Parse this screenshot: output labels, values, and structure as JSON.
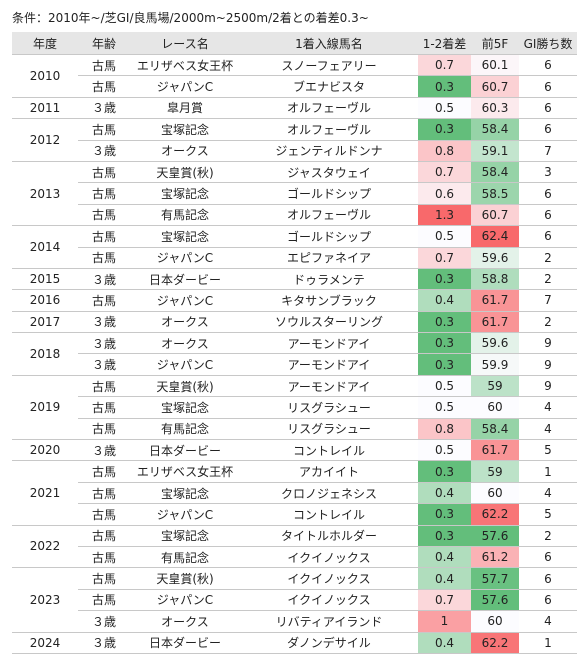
{
  "caption": "条件：2010年~/芝GI/良馬場/2000m~2500m/2着との着差0.3~",
  "table": {
    "columns": [
      "年度",
      "年齢",
      "レース名",
      "1着入線馬名",
      "1-2着差",
      "前5F",
      "GI勝ち数"
    ],
    "groups": [
      {
        "year": "2010",
        "rows": [
          [
            "古馬",
            "エリザベス女王杯",
            "スノーフェアリー",
            0.7,
            60.1,
            6
          ],
          [
            "古馬",
            "ジャパンC",
            "ブエナビスタ",
            0.3,
            60.7,
            6
          ]
        ]
      },
      {
        "year": "2011",
        "rows": [
          [
            "３歳",
            "皐月賞",
            "オルフェーヴル",
            0.5,
            60.3,
            6
          ]
        ]
      },
      {
        "year": "2012",
        "rows": [
          [
            "古馬",
            "宝塚記念",
            "オルフェーヴル",
            0.3,
            58.4,
            6
          ],
          [
            "３歳",
            "オークス",
            "ジェンティルドンナ",
            0.8,
            59.1,
            7
          ]
        ]
      },
      {
        "year": "2013",
        "rows": [
          [
            "古馬",
            "天皇賞(秋)",
            "ジャスタウェイ",
            0.7,
            58.4,
            3
          ],
          [
            "古馬",
            "宝塚記念",
            "ゴールドシップ",
            0.6,
            58.5,
            6
          ],
          [
            "古馬",
            "有馬記念",
            "オルフェーヴル",
            1.3,
            60.7,
            6
          ]
        ]
      },
      {
        "year": "2014",
        "rows": [
          [
            "古馬",
            "宝塚記念",
            "ゴールドシップ",
            0.5,
            62.4,
            6
          ],
          [
            "古馬",
            "ジャパンC",
            "エピファネイア",
            0.7,
            59.6,
            2
          ]
        ]
      },
      {
        "year": "2015",
        "rows": [
          [
            "３歳",
            "日本ダービー",
            "ドゥラメンテ",
            0.3,
            58.8,
            2
          ]
        ]
      },
      {
        "year": "2016",
        "rows": [
          [
            "古馬",
            "ジャパンC",
            "キタサンブラック",
            0.4,
            61.7,
            7
          ]
        ]
      },
      {
        "year": "2017",
        "rows": [
          [
            "３歳",
            "オークス",
            "ソウルスターリング",
            0.3,
            61.7,
            2
          ]
        ]
      },
      {
        "year": "2018",
        "rows": [
          [
            "３歳",
            "オークス",
            "アーモンドアイ",
            0.3,
            59.6,
            9
          ],
          [
            "３歳",
            "ジャパンC",
            "アーモンドアイ",
            0.3,
            59.9,
            9
          ]
        ]
      },
      {
        "year": "2019",
        "rows": [
          [
            "古馬",
            "天皇賞(秋)",
            "アーモンドアイ",
            0.5,
            59,
            9
          ],
          [
            "古馬",
            "宝塚記念",
            "リスグラシュー",
            0.5,
            60,
            4
          ],
          [
            "古馬",
            "有馬記念",
            "リスグラシュー",
            0.8,
            58.4,
            4
          ]
        ]
      },
      {
        "year": "2020",
        "rows": [
          [
            "３歳",
            "日本ダービー",
            "コントレイル",
            0.5,
            61.7,
            5
          ]
        ]
      },
      {
        "year": "2021",
        "rows": [
          [
            "古馬",
            "エリザベス女王杯",
            "アカイイト",
            0.3,
            59,
            1
          ],
          [
            "古馬",
            "宝塚記念",
            "クロノジェネシス",
            0.4,
            60,
            4
          ],
          [
            "古馬",
            "ジャパンC",
            "コントレイル",
            0.3,
            62.2,
            5
          ]
        ]
      },
      {
        "year": "2022",
        "rows": [
          [
            "古馬",
            "宝塚記念",
            "タイトルホルダー",
            0.3,
            57.6,
            2
          ],
          [
            "古馬",
            "有馬記念",
            "イクイノックス",
            0.4,
            61.2,
            6
          ]
        ]
      },
      {
        "year": "2023",
        "rows": [
          [
            "古馬",
            "天皇賞(秋)",
            "イクイノックス",
            0.4,
            57.7,
            6
          ],
          [
            "古馬",
            "ジャパンC",
            "イクイノックス",
            0.7,
            57.6,
            6
          ],
          [
            "３歳",
            "オークス",
            "リバティアイランド",
            1,
            60,
            4
          ]
        ]
      },
      {
        "year": "2024",
        "rows": [
          [
            "３歳",
            "日本ダービー",
            "ダノンデサイル",
            0.4,
            62.2,
            1
          ]
        ]
      }
    ]
  }
}
